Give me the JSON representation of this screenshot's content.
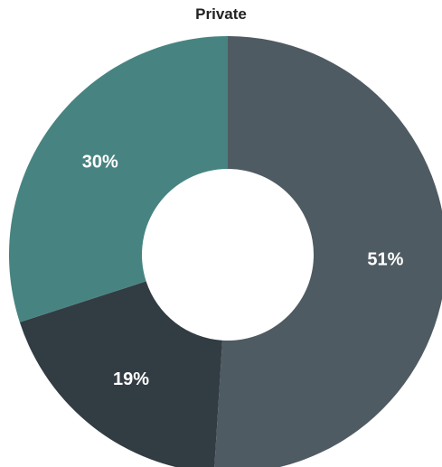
{
  "chart_data": {
    "type": "pie",
    "title": "Private",
    "labels": [
      "51%",
      "19%",
      "30%"
    ],
    "values": [
      51,
      19,
      30
    ],
    "colors": [
      "#4f5b62",
      "#323c43",
      "#478481"
    ],
    "donut": true
  }
}
